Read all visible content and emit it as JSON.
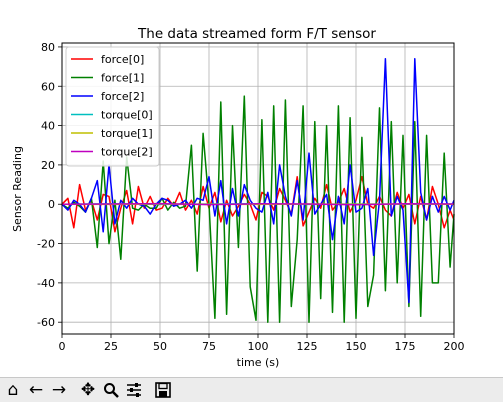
{
  "chart_data": {
    "type": "line",
    "title": "The data streamed form F/T sensor",
    "xlabel": "time (s)",
    "ylabel": "Sensor Reading",
    "xlim": [
      0,
      200
    ],
    "ylim": [
      -66,
      82
    ],
    "xticks": [
      0,
      25,
      50,
      75,
      100,
      125,
      150,
      175,
      200
    ],
    "yticks": [
      -60,
      -40,
      -20,
      0,
      20,
      40,
      60,
      80
    ],
    "grid": true,
    "legend": "top-left",
    "series": [
      {
        "name": "force[0]",
        "color": "#ff0000",
        "x": [
          0,
          3,
          6,
          9,
          12,
          15,
          18,
          21,
          24,
          27,
          30,
          33,
          36,
          39,
          42,
          45,
          48,
          51,
          54,
          57,
          60,
          63,
          66,
          69,
          72,
          75,
          78,
          81,
          84,
          87,
          90,
          93,
          96,
          99,
          102,
          105,
          108,
          111,
          114,
          117,
          120,
          123,
          126,
          129,
          132,
          135,
          138,
          141,
          144,
          147,
          150,
          153,
          156,
          159,
          162,
          165,
          168,
          171,
          174,
          177,
          180,
          183,
          186,
          189,
          192,
          195,
          198,
          200
        ],
        "values": [
          0,
          3,
          -12,
          10,
          -3,
          2,
          -8,
          5,
          4,
          -14,
          -2,
          7,
          -10,
          9,
          -2,
          4,
          -3,
          -2,
          3,
          -1,
          6,
          -3,
          2,
          -5,
          9,
          -2,
          6,
          -9,
          2,
          -6,
          -1,
          5,
          0,
          -8,
          6,
          4,
          -3,
          8,
          2,
          -5,
          14,
          -11,
          -4,
          3,
          -2,
          10,
          -3,
          1,
          8,
          -4,
          2,
          14,
          0,
          -2,
          4,
          -3,
          -6,
          6,
          -2,
          5,
          -10,
          4,
          -8,
          9,
          0,
          -12,
          -3,
          -8
        ]
      },
      {
        "name": "force[1]",
        "color": "#008000",
        "x": [
          0,
          3,
          6,
          9,
          12,
          15,
          18,
          21,
          24,
          27,
          30,
          33,
          36,
          39,
          42,
          45,
          48,
          51,
          54,
          57,
          60,
          63,
          66,
          69,
          72,
          75,
          78,
          81,
          84,
          87,
          90,
          93,
          96,
          99,
          102,
          105,
          108,
          111,
          114,
          117,
          120,
          123,
          126,
          129,
          132,
          135,
          138,
          141,
          144,
          147,
          150,
          153,
          156,
          159,
          162,
          165,
          168,
          171,
          174,
          177,
          180,
          183,
          186,
          189,
          192,
          195,
          198,
          200
        ],
        "values": [
          0,
          -2,
          1,
          -1,
          -4,
          3,
          -22,
          22,
          -20,
          2,
          -28,
          24,
          -2,
          -3,
          0,
          -2,
          -2,
          3,
          -3,
          1,
          -2,
          -1,
          30,
          -34,
          36,
          0,
          -58,
          52,
          -56,
          40,
          -22,
          55,
          -42,
          -59,
          43,
          -60,
          50,
          -60,
          53,
          -52,
          -18,
          50,
          -60,
          42,
          -48,
          40,
          -55,
          50,
          -60,
          44,
          -58,
          34,
          -52,
          -36,
          49,
          -44,
          42,
          -40,
          35,
          -52,
          42,
          -57,
          35,
          -40,
          -40,
          26,
          -32,
          -5
        ]
      },
      {
        "name": "force[2]",
        "color": "#0000ff",
        "x": [
          0,
          3,
          6,
          9,
          12,
          15,
          18,
          21,
          24,
          27,
          30,
          33,
          36,
          39,
          42,
          45,
          48,
          51,
          54,
          57,
          60,
          63,
          66,
          69,
          72,
          75,
          78,
          81,
          84,
          87,
          90,
          93,
          96,
          99,
          102,
          105,
          108,
          111,
          114,
          117,
          120,
          123,
          126,
          129,
          132,
          135,
          138,
          141,
          144,
          147,
          150,
          153,
          156,
          159,
          162,
          165,
          168,
          171,
          174,
          177,
          180,
          183,
          186,
          189,
          192,
          195,
          198,
          200
        ],
        "values": [
          0,
          -3,
          2,
          0,
          -4,
          3,
          12,
          -14,
          20,
          -10,
          2,
          -2,
          3,
          0,
          -1,
          -5,
          0,
          3,
          2,
          -1,
          0,
          2,
          -2,
          3,
          2,
          14,
          -6,
          12,
          -10,
          8,
          -6,
          10,
          2,
          -2,
          -4,
          6,
          -10,
          20,
          4,
          -6,
          12,
          -8,
          26,
          -5,
          0,
          5,
          -18,
          4,
          -10,
          20,
          -4,
          -2,
          8,
          -26,
          2,
          74,
          -6,
          4,
          -3,
          -50,
          74,
          6,
          -8,
          4,
          -4,
          4,
          -3,
          2
        ]
      },
      {
        "name": "torque[0]",
        "color": "#00bfbf",
        "x": [
          0,
          25,
          50,
          75,
          100,
          125,
          150,
          175,
          200
        ],
        "values": [
          0,
          0.2,
          -0.1,
          0.1,
          0.2,
          -0.1,
          0.1,
          0,
          0.1
        ]
      },
      {
        "name": "torque[1]",
        "color": "#bfbf00",
        "x": [
          0,
          25,
          50,
          75,
          100,
          125,
          150,
          175,
          200
        ],
        "values": [
          0,
          -0.1,
          0.1,
          0,
          -0.1,
          0.1,
          0,
          0.1,
          0
        ]
      },
      {
        "name": "torque[2]",
        "color": "#bf00bf",
        "x": [
          0,
          25,
          50,
          75,
          100,
          125,
          150,
          175,
          200
        ],
        "values": [
          0,
          0.1,
          0.3,
          -0.2,
          0.2,
          0.1,
          -0.3,
          0.2,
          0.1
        ]
      }
    ]
  },
  "toolbar": {
    "items": [
      {
        "name": "home-button",
        "icon": "home-icon",
        "glyph": "⌂"
      },
      {
        "name": "back-button",
        "icon": "arrow-left-icon",
        "glyph": "←"
      },
      {
        "name": "forward-button",
        "icon": "arrow-right-icon",
        "glyph": "→"
      },
      {
        "name": "pan-button",
        "icon": "move-icon",
        "glyph": "✥"
      },
      {
        "name": "zoom-button",
        "icon": "magnifier-icon",
        "glyph": ""
      },
      {
        "name": "configure-subplots-button",
        "icon": "sliders-icon",
        "glyph": ""
      },
      {
        "name": "save-button",
        "icon": "floppy-disk-icon",
        "glyph": ""
      }
    ]
  }
}
